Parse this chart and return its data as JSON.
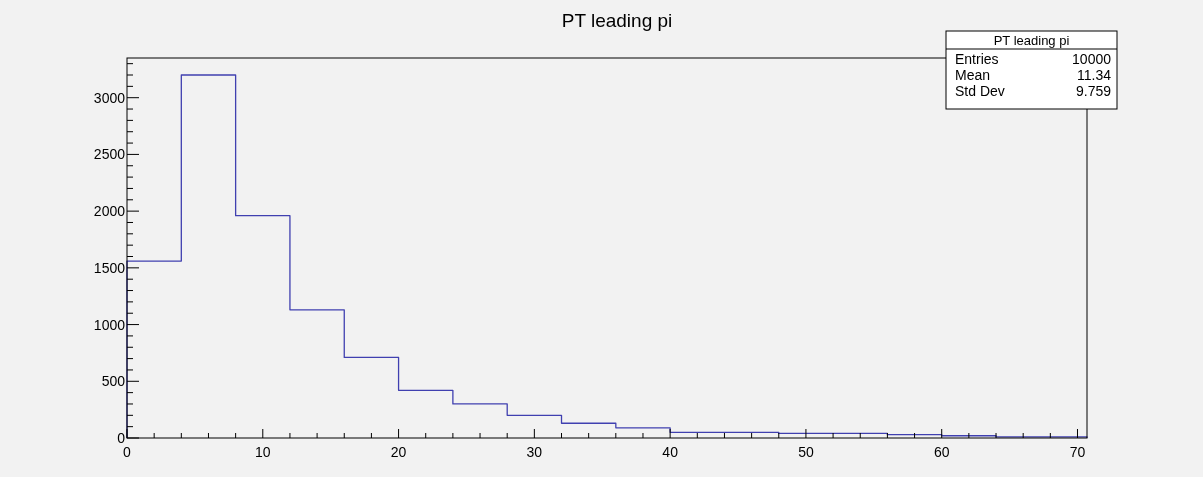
{
  "chart_data": {
    "type": "histogram",
    "title": "PT leading pi",
    "bins": [
      0,
      4,
      8,
      12,
      16,
      20,
      24,
      28,
      32,
      36,
      40,
      44,
      48,
      52,
      56,
      60,
      64,
      68,
      70.7
    ],
    "values": [
      1560,
      3200,
      1960,
      1130,
      710,
      420,
      300,
      200,
      130,
      90,
      50,
      50,
      40,
      40,
      30,
      20,
      10,
      10
    ],
    "color": "#4040b0",
    "xlim": [
      0,
      70.7
    ],
    "ylim": [
      0,
      3350
    ],
    "xticks": [
      0,
      10,
      20,
      30,
      40,
      50,
      60,
      70
    ],
    "yticks": [
      0,
      500,
      1000,
      1500,
      2000,
      2500,
      3000
    ],
    "annotations": [
      "PT leading pi",
      "Entries",
      "10000",
      "Mean",
      "11.34",
      "Std Dev",
      "9.759"
    ],
    "grid": false
  }
}
